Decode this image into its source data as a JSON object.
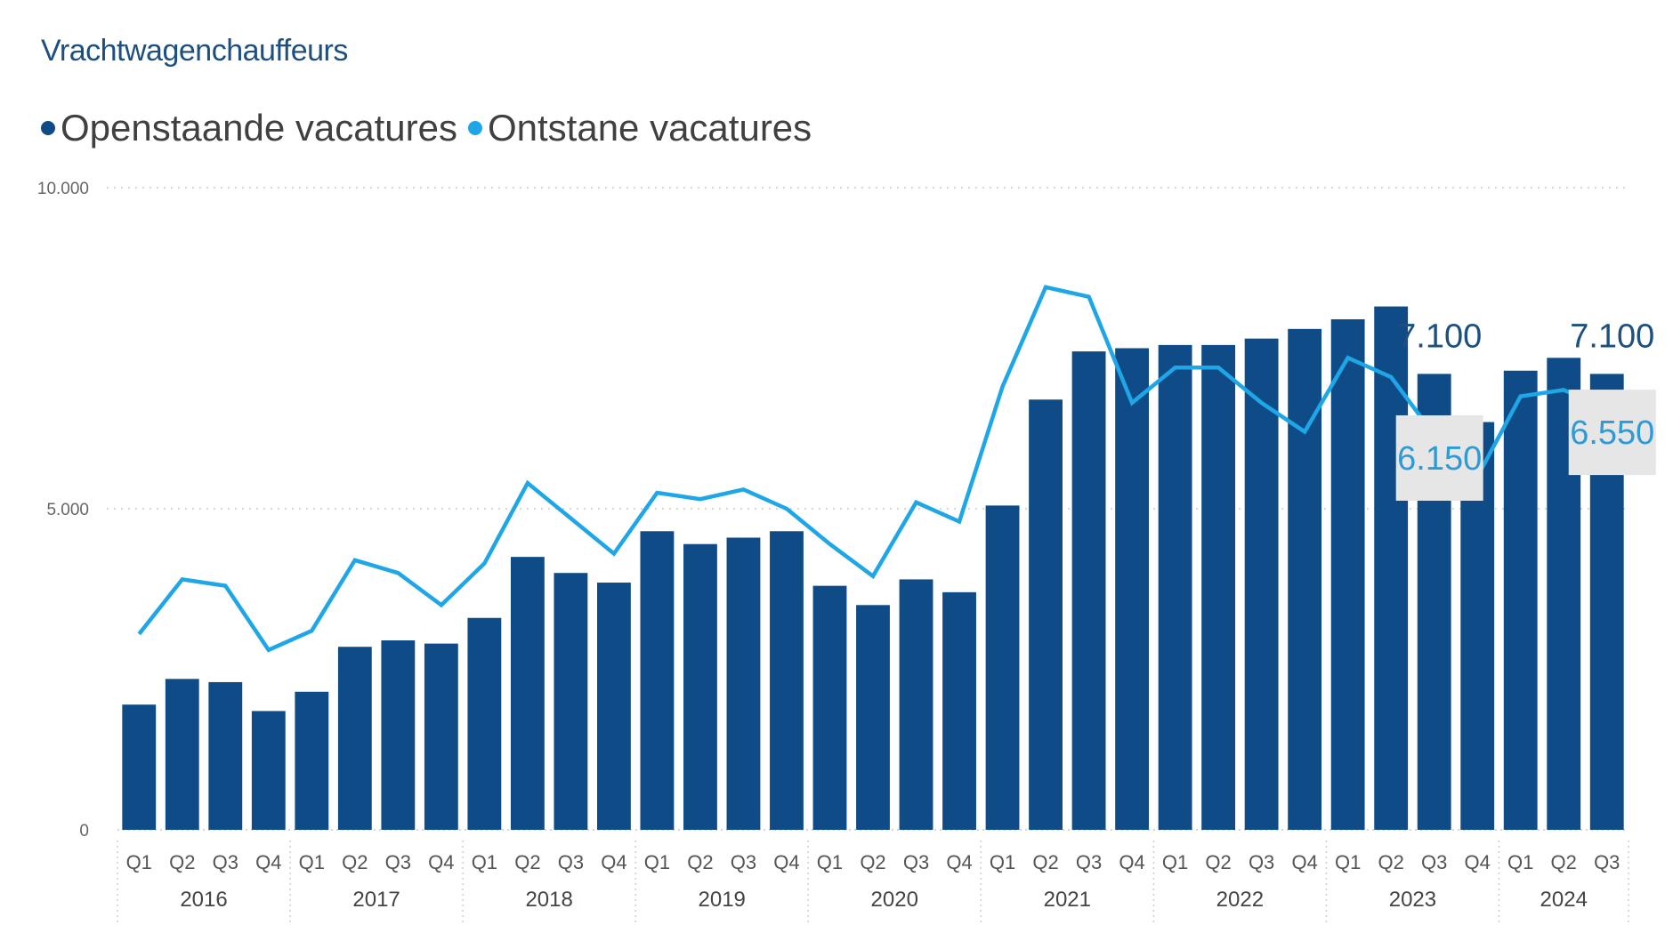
{
  "chart_data": {
    "type": "bar",
    "title": "Vrachtwagenchauffeurs",
    "xlabel": "",
    "ylabel": "",
    "ylim": [
      0,
      10000
    ],
    "yticks": [
      "0",
      "5.000",
      "10.000"
    ],
    "ytick_values": [
      0,
      5000,
      10000
    ],
    "grid": true,
    "legend_position": "top-left",
    "years": [
      "2016",
      "2017",
      "2018",
      "2019",
      "2020",
      "2021",
      "2022",
      "2023",
      "2024"
    ],
    "categories": [
      "Q1",
      "Q2",
      "Q3",
      "Q4",
      "Q1",
      "Q2",
      "Q3",
      "Q4",
      "Q1",
      "Q2",
      "Q3",
      "Q4",
      "Q1",
      "Q2",
      "Q3",
      "Q4",
      "Q1",
      "Q2",
      "Q3",
      "Q4",
      "Q1",
      "Q2",
      "Q3",
      "Q4",
      "Q1",
      "Q2",
      "Q3",
      "Q4",
      "Q1",
      "Q2",
      "Q3",
      "Q4",
      "Q1",
      "Q2",
      "Q3"
    ],
    "year_of_category": [
      "2016",
      "2016",
      "2016",
      "2016",
      "2017",
      "2017",
      "2017",
      "2017",
      "2018",
      "2018",
      "2018",
      "2018",
      "2019",
      "2019",
      "2019",
      "2019",
      "2020",
      "2020",
      "2020",
      "2020",
      "2021",
      "2021",
      "2021",
      "2021",
      "2022",
      "2022",
      "2022",
      "2022",
      "2023",
      "2023",
      "2023",
      "2023",
      "2024",
      "2024",
      "2024"
    ],
    "series": [
      {
        "name": "Openstaande vacatures",
        "kind": "bar",
        "color": "#0f4c87",
        "values": [
          1950,
          2350,
          2300,
          1850,
          2150,
          2850,
          2950,
          2900,
          3300,
          4250,
          4000,
          3850,
          4650,
          4450,
          4550,
          4650,
          3800,
          3500,
          3900,
          3700,
          5050,
          6700,
          7450,
          7500,
          7550,
          7550,
          7650,
          7800,
          7950,
          8150,
          7100,
          6350,
          7150,
          7350,
          7100
        ]
      },
      {
        "name": "Ontstane vacatures",
        "kind": "line",
        "color": "#1ea6e6",
        "values": [
          3050,
          3900,
          3800,
          2800,
          3100,
          4200,
          4000,
          3500,
          4150,
          5400,
          4850,
          4300,
          5250,
          5150,
          5300,
          5000,
          4450,
          3950,
          5100,
          4800,
          6900,
          8450,
          8300,
          6650,
          7200,
          7200,
          6650,
          6200,
          7350,
          7050,
          6150,
          5500,
          6750,
          6850,
          6550
        ]
      }
    ],
    "annotations": [
      {
        "text": "7.100",
        "series": "Openstaande vacatures",
        "index": 30,
        "value": 7100,
        "boxed": false
      },
      {
        "text": "7.100",
        "series": "Openstaande vacatures",
        "index": 34,
        "value": 7100,
        "boxed": false
      },
      {
        "text": "6.150",
        "series": "Ontstane vacatures",
        "index": 30,
        "value": 6150,
        "boxed": true
      },
      {
        "text": "6.550",
        "series": "Ontstane vacatures",
        "index": 34,
        "value": 6550,
        "boxed": true
      }
    ]
  }
}
